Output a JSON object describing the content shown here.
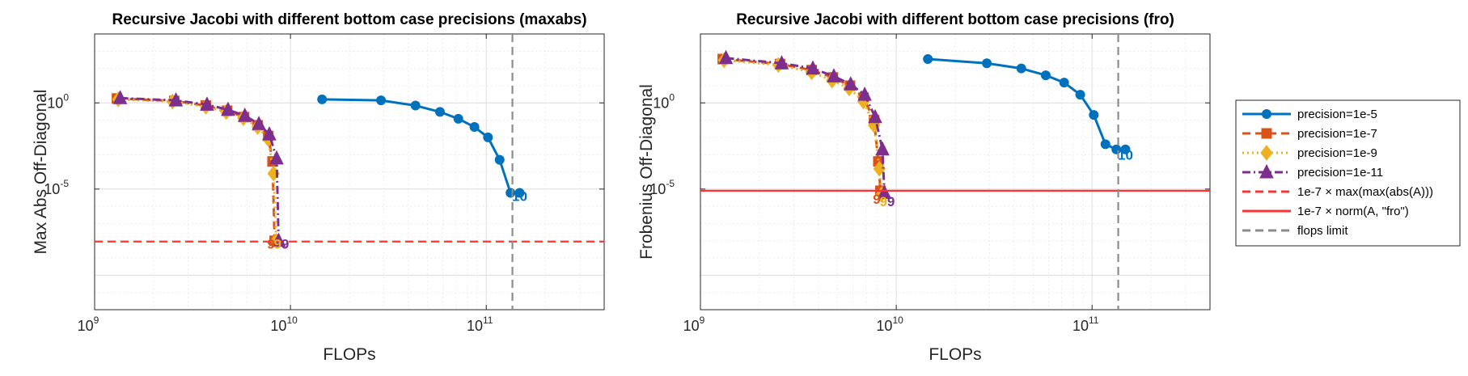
{
  "chart_data": [
    {
      "type": "line",
      "title": "Recursive Jacobi with different bottom case precisions (maxabs)",
      "xlabel": "FLOPs",
      "ylabel": "Max Abs Off-Diagonal",
      "xscale": "log",
      "yscale": "log",
      "xlim": [
        1000000000.0,
        400000000000.0
      ],
      "ylim": [
        1e-12,
        10000.0
      ],
      "xticks": [
        {
          "base": "10",
          "exp": "9"
        },
        {
          "base": "10",
          "exp": "10"
        },
        {
          "base": "10",
          "exp": "11"
        }
      ],
      "yticks": [
        {
          "base": "10",
          "exp": "0",
          "v": 1
        },
        {
          "base": "10",
          "exp": "-5",
          "v": 1e-05
        }
      ],
      "grid": true,
      "series": [
        {
          "name": "precision=1e-5",
          "color": "#0072BD",
          "style": "solid",
          "marker": "circle",
          "x": [
            14500000000.0,
            29000000000.0,
            43500000000.0,
            58000000000.0,
            72000000000.0,
            87000000000.0,
            102000000000.0,
            117000000000.0,
            133000000000.0,
            148000000000.0
          ],
          "y": [
            1.6,
            1.4,
            0.7,
            0.3,
            0.12,
            0.04,
            0.01,
            0.0005,
            6e-06,
            6e-06
          ]
        },
        {
          "name": "precision=1e-7",
          "color": "#D95319",
          "style": "dashed",
          "marker": "square",
          "x": [
            1300000000.0,
            2550000000.0,
            3700000000.0,
            4750000000.0,
            5800000000.0,
            6800000000.0,
            7700000000.0,
            8100000000.0,
            8300000000.0
          ],
          "y": [
            1.8,
            1.3,
            0.7,
            0.35,
            0.15,
            0.05,
            0.012,
            0.0004,
            1e-08
          ]
        },
        {
          "name": "precision=1e-9",
          "color": "#EDB120",
          "style": "dotted",
          "marker": "diamond",
          "x": [
            1320000000.0,
            2500000000.0,
            3700000000.0,
            4700000000.0,
            5750000000.0,
            6800000000.0,
            7700000000.0,
            8200000000.0,
            8450000000.0
          ],
          "y": [
            1.6,
            1.2,
            0.6,
            0.3,
            0.13,
            0.04,
            0.008,
            8e-05,
            1e-08
          ]
        },
        {
          "name": "precision=1e-11",
          "color": "#7E2F8E",
          "style": "dashdot",
          "marker": "triangle",
          "x": [
            1350000000.0,
            2600000000.0,
            3750000000.0,
            4800000000.0,
            5850000000.0,
            6900000000.0,
            7800000000.0,
            8500000000.0,
            8700000000.0
          ],
          "y": [
            1.9,
            1.4,
            0.8,
            0.4,
            0.18,
            0.06,
            0.015,
            0.0006,
            1e-08
          ]
        },
        {
          "name": "1e-7 × max(max(abs(A)))",
          "color": "#FF3333",
          "style": "dashed",
          "marker": "none",
          "hline": 9e-09
        },
        {
          "name": "flops limit",
          "color": "#8C8C8C",
          "style": "dashed",
          "marker": "none",
          "vline": 136000000000.0
        }
      ],
      "annotations": [
        {
          "text": "10",
          "x": 148000000000.0,
          "y": 2e-06,
          "color": "#0072BD"
        },
        {
          "text": "9",
          "x": 7950000000.0,
          "y": 3.5e-09,
          "color": "#D95319"
        },
        {
          "text": "9",
          "x": 8600000000.0,
          "y": 3.5e-09,
          "color": "#EDB120"
        },
        {
          "text": "9",
          "x": 9400000000.0,
          "y": 3.5e-09,
          "color": "#7E2F8E"
        }
      ]
    },
    {
      "type": "line",
      "title": "Recursive Jacobi with different bottom case precisions (fro)",
      "xlabel": "FLOPs",
      "ylabel": "Frobenius Off-Diagonal",
      "xscale": "log",
      "yscale": "log",
      "xlim": [
        1000000000.0,
        400000000000.0
      ],
      "ylim": [
        1e-12,
        10000.0
      ],
      "xticks": [
        {
          "base": "10",
          "exp": "9"
        },
        {
          "base": "10",
          "exp": "10"
        },
        {
          "base": "10",
          "exp": "11"
        }
      ],
      "yticks": [
        {
          "base": "10",
          "exp": "0",
          "v": 1
        },
        {
          "base": "10",
          "exp": "-5",
          "v": 1e-05
        }
      ],
      "grid": true,
      "series": [
        {
          "name": "precision=1e-5",
          "color": "#0072BD",
          "style": "solid",
          "marker": "circle",
          "x": [
            14500000000.0,
            29000000000.0,
            43500000000.0,
            58000000000.0,
            72000000000.0,
            87000000000.0,
            102000000000.0,
            117000000000.0,
            133000000000.0,
            148000000000.0
          ],
          "y": [
            350,
            200,
            100,
            40,
            15,
            3,
            0.2,
            0.004,
            0.002,
            0.002
          ]
        },
        {
          "name": "precision=1e-7",
          "color": "#D95319",
          "style": "dashed",
          "marker": "square",
          "x": [
            1300000000.0,
            2550000000.0,
            3700000000.0,
            4750000000.0,
            5800000000.0,
            6800000000.0,
            7700000000.0,
            8100000000.0,
            8300000000.0
          ],
          "y": [
            350,
            180,
            80,
            30,
            10,
            2,
            0.1,
            0.0004,
            8e-06
          ]
        },
        {
          "name": "precision=1e-9",
          "color": "#EDB120",
          "style": "dotted",
          "marker": "diamond",
          "x": [
            1320000000.0,
            2500000000.0,
            3700000000.0,
            4700000000.0,
            5750000000.0,
            6800000000.0,
            7700000000.0,
            8200000000.0,
            8450000000.0
          ],
          "y": [
            300,
            160,
            60,
            20,
            7,
            1.2,
            0.05,
            0.00015,
            5e-06
          ]
        },
        {
          "name": "precision=1e-11",
          "color": "#7E2F8E",
          "style": "dashdot",
          "marker": "triangle",
          "x": [
            1350000000.0,
            2600000000.0,
            3750000000.0,
            4800000000.0,
            5850000000.0,
            6900000000.0,
            7800000000.0,
            8500000000.0,
            8700000000.0
          ],
          "y": [
            400,
            200,
            100,
            35,
            12,
            3,
            0.15,
            0.002,
            6e-06
          ]
        },
        {
          "name": "1e-7 × norm(A, \"fro\")",
          "color": "#FF3333",
          "style": "solid",
          "marker": "none",
          "hline": 8e-06
        },
        {
          "name": "flops limit",
          "color": "#8C8C8C",
          "style": "dashed",
          "marker": "none",
          "vline": 136000000000.0
        }
      ],
      "annotations": [
        {
          "text": "10",
          "x": 148000000000.0,
          "y": 0.0005,
          "color": "#0072BD"
        },
        {
          "text": "9",
          "x": 7950000000.0,
          "y": 1.4e-06,
          "color": "#D95319"
        },
        {
          "text": "9",
          "x": 8600000000.0,
          "y": 1e-06,
          "color": "#EDB120"
        },
        {
          "text": "9",
          "x": 9400000000.0,
          "y": 1e-06,
          "color": "#7E2F8E"
        }
      ]
    }
  ],
  "legend": {
    "placement": "right",
    "entries": [
      {
        "label": "precision=1e-5",
        "color": "#0072BD",
        "style": "solid",
        "marker": "circle"
      },
      {
        "label": "precision=1e-7",
        "color": "#D95319",
        "style": "dashed",
        "marker": "square"
      },
      {
        "label": "precision=1e-9",
        "color": "#EDB120",
        "style": "dotted",
        "marker": "diamond"
      },
      {
        "label": "precision=1e-11",
        "color": "#7E2F8E",
        "style": "dashdot",
        "marker": "triangle"
      },
      {
        "label": "1e-7 × max(max(abs(A)))",
        "color": "#FF3333",
        "style": "dashed",
        "marker": "none"
      },
      {
        "label": "1e-7 × norm(A, \"fro\")",
        "color": "#FF3333",
        "style": "solid",
        "marker": "none"
      },
      {
        "label": "flops limit",
        "color": "#8C8C8C",
        "style": "dashed",
        "marker": "none"
      }
    ]
  }
}
